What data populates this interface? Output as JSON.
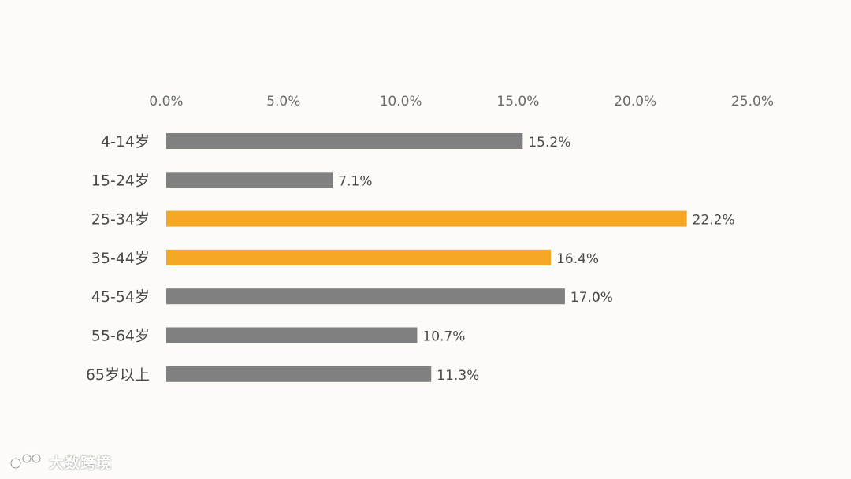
{
  "chart_data": {
    "type": "bar",
    "orientation": "horizontal",
    "categories": [
      "4-14岁",
      "15-24岁",
      "25-34岁",
      "35-44岁",
      "45-54岁",
      "55-64岁",
      "65岁以上"
    ],
    "values": [
      15.2,
      7.1,
      22.2,
      16.4,
      17.0,
      10.7,
      11.3
    ],
    "data_labels": [
      "15.2%",
      "7.1%",
      "22.2%",
      "16.4%",
      "17.0%",
      "10.7%",
      "11.3%"
    ],
    "highlighted": [
      false,
      false,
      true,
      true,
      false,
      false,
      false
    ],
    "xlim": [
      0,
      25
    ],
    "x_ticks": [
      0,
      5,
      10,
      15,
      20,
      25
    ],
    "x_tick_labels": [
      "0.0%",
      "5.0%",
      "10.0%",
      "15.0%",
      "20.0%",
      "25.0%"
    ],
    "x_axis_position": "top",
    "grid": false,
    "legend": "none",
    "title": "",
    "xlabel": "",
    "ylabel": ""
  },
  "colors": {
    "bar_default": "#808080",
    "bar_highlight": "#f5a623",
    "background": "#fcfbf8"
  },
  "watermark": {
    "text": "大数跨境",
    "icon": "watermark-logo-icon"
  }
}
